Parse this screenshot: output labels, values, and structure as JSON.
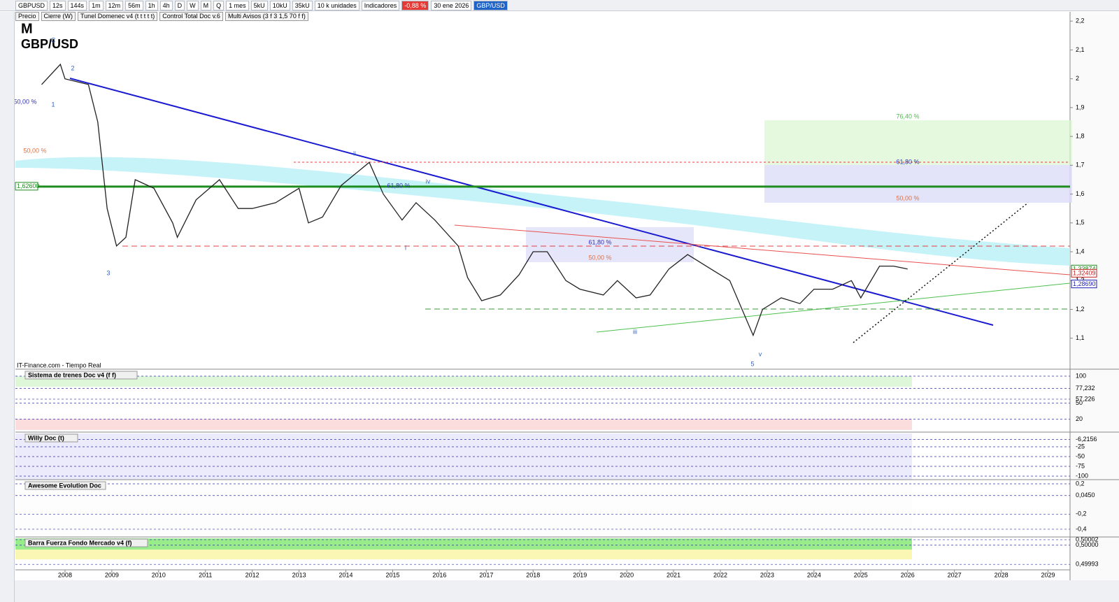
{
  "toolbar": {
    "symbol": "GBPUSD",
    "intervals": [
      "12s",
      "144s",
      "1m",
      "12m",
      "56m",
      "1h",
      "4h",
      "D",
      "W",
      "M",
      "Q"
    ],
    "period": "1 mes",
    "units": [
      "5kU",
      "10kU",
      "35kU"
    ],
    "unit_count": "10 k unidades",
    "indicators": "Indicadores",
    "change": "-0,88 %",
    "date": "30 ene 2026",
    "pair": "GBP/USD"
  },
  "legend": [
    "Precio",
    "Cierre (W)",
    "Tunel Domenec v4 (t t t t t)",
    "Control Total Doc v.6",
    "Multi Avisos (3 f 3 1,5 70 f f)"
  ],
  "overlay": {
    "timeframe": "M",
    "name": "GBP/USD",
    "source": "IT-Finance.com - Tiempo Real"
  },
  "annotations": [
    "76,40 %",
    "61,80 %",
    "50,00 %",
    "61,80 %",
    "50,00 %",
    "61,80 %",
    "50,00 %",
    "C",
    "2",
    "1",
    "3",
    "ii",
    "i",
    "iv",
    "iii",
    "5",
    "v"
  ],
  "chart": {
    "type": "line",
    "series": [
      {
        "name": "GBP/USD",
        "color": "#222222",
        "x": [
          2007.5,
          2007.9,
          2008.0,
          2008.5,
          2008.7,
          2008.9,
          2009.1,
          2009.3,
          2009.5,
          2009.9,
          2010.3,
          2010.4,
          2010.8,
          2011.3,
          2011.7,
          2012.0,
          2012.5,
          2013.0,
          2013.2,
          2013.5,
          2013.9,
          2014.5,
          2014.8,
          2015.2,
          2015.5,
          2015.9,
          2016.4,
          2016.6,
          2016.9,
          2017.3,
          2017.7,
          2018.0,
          2018.3,
          2018.7,
          2019.0,
          2019.5,
          2019.8,
          2020.2,
          2020.5,
          2020.9,
          2021.3,
          2021.8,
          2022.2,
          2022.7,
          2022.9,
          2023.3,
          2023.7,
          2024.0,
          2024.4,
          2024.8,
          2025.0,
          2025.4,
          2025.7,
          2026.0
        ],
        "values": [
          1.98,
          2.05,
          2.0,
          1.98,
          1.85,
          1.55,
          1.42,
          1.45,
          1.65,
          1.62,
          1.5,
          1.45,
          1.58,
          1.65,
          1.55,
          1.55,
          1.57,
          1.62,
          1.5,
          1.52,
          1.63,
          1.71,
          1.6,
          1.51,
          1.57,
          1.51,
          1.42,
          1.31,
          1.23,
          1.25,
          1.32,
          1.4,
          1.4,
          1.3,
          1.27,
          1.25,
          1.3,
          1.24,
          1.25,
          1.34,
          1.39,
          1.34,
          1.3,
          1.11,
          1.2,
          1.24,
          1.22,
          1.27,
          1.27,
          1.3,
          1.24,
          1.35,
          1.35,
          1.34
        ]
      }
    ],
    "xlim": [
      2006.94,
      2029.47
    ],
    "xticks": [
      2008,
      2009,
      2010,
      2011,
      2012,
      2013,
      2014,
      2015,
      2016,
      2017,
      2018,
      2019,
      2020,
      2021,
      2022,
      2023,
      2024,
      2025,
      2026,
      2027,
      2028,
      2029
    ],
    "ylim": [
      0.995,
      2.232
    ],
    "yticks": [
      {
        "value": 2.2,
        "label": "2,2"
      },
      {
        "value": 2.1,
        "label": "2,1"
      },
      2,
      {
        "value": 1.9,
        "label": "1,9"
      },
      {
        "value": 1.8,
        "label": "1,8"
      },
      {
        "value": 1.7,
        "label": "1,7"
      },
      {
        "value": 1.6,
        "label": "1,6"
      },
      {
        "value": 1.5,
        "label": "1,5"
      },
      {
        "value": 1.4,
        "label": "1,4"
      },
      {
        "value": 1.3,
        "label": "1,3"
      },
      {
        "value": 1.2,
        "label": "1,2"
      },
      {
        "value": 1.1,
        "label": "1,1"
      }
    ],
    "price_labels": [
      {
        "value": 1.626,
        "label": "1,62600",
        "color": "#1e8c1e"
      },
      {
        "value": 1.33874,
        "label": "1,33874",
        "color": "#1e8c1e"
      },
      {
        "value": 1.32409,
        "label": "1,32409",
        "color": "#c81e1e"
      },
      {
        "value": 1.2869,
        "label": "1,28690",
        "color": "#1e1eb4"
      }
    ]
  },
  "panels": [
    {
      "title": "Sistema de trenes Doc v4 (f f)",
      "ylim": [
        -1.3,
        110.4
      ],
      "yticks": [
        100,
        {
          "value": 77.232,
          "label": "77,232"
        },
        {
          "value": 57.226,
          "label": "57,226"
        },
        50,
        20
      ]
    },
    {
      "title": "Willy Doc (t)",
      "ylim": [
        -108.9,
        8.9
      ],
      "yticks": [
        {
          "value": -6.2156,
          "label": "-6,2156"
        },
        -25,
        -50,
        -75,
        -100
      ]
    },
    {
      "title": "Awesome Evolution Doc",
      "ylim": [
        -0.502,
        0.237
      ],
      "yticks": [
        {
          "value": 0.2,
          "label": "0,2"
        },
        {
          "value": 0.045,
          "label": "0,0450"
        },
        {
          "value": -0.2,
          "label": "-0,2"
        },
        {
          "value": -0.4,
          "label": "-0,4"
        }
      ]
    },
    {
      "title": "Barra Fuerza Fondo Mercado v4 (f)",
      "ylim": [
        0.49991,
        0.500025
      ],
      "yticks": [
        {
          "value": 0.50002,
          "label": "0,50002"
        },
        {
          "value": 0.5,
          "label": "0,50000"
        },
        {
          "value": 0.49993,
          "label": "0,49993"
        }
      ]
    }
  ]
}
